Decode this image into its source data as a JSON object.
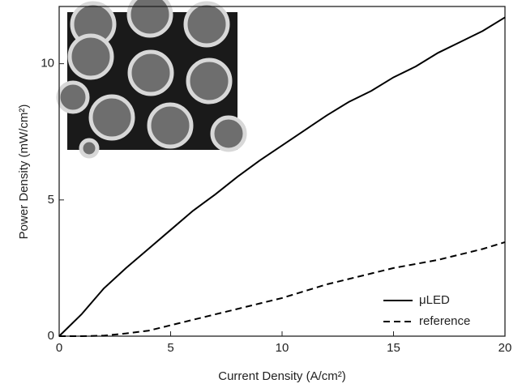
{
  "chart_data": {
    "type": "line",
    "x_label": "Current Density (A/cm²)",
    "y_label": "Power Density (mW/cm²)",
    "x": [
      0,
      1,
      2,
      3,
      4,
      5,
      6,
      7,
      8,
      9,
      10,
      11,
      12,
      13,
      14,
      15,
      16,
      17,
      18,
      19,
      20
    ],
    "series": [
      {
        "name": "μLED",
        "color": "#000000",
        "linestyle": "solid",
        "values": [
          0,
          0.8,
          1.75,
          2.5,
          3.2,
          3.9,
          4.6,
          5.2,
          5.85,
          6.45,
          7.0,
          7.55,
          8.1,
          8.6,
          9.0,
          9.5,
          9.9,
          10.4,
          10.8,
          11.2,
          11.7
        ]
      },
      {
        "name": "reference",
        "color": "#000000",
        "linestyle": "dashed",
        "values": [
          0,
          0,
          0.02,
          0.1,
          0.2,
          0.4,
          0.6,
          0.8,
          1.0,
          1.2,
          1.4,
          1.65,
          1.9,
          2.1,
          2.3,
          2.5,
          2.65,
          2.8,
          3.0,
          3.2,
          3.45
        ]
      }
    ],
    "xlim": [
      0,
      20
    ],
    "ylim": [
      0,
      12.1
    ],
    "xticks": [
      0,
      5,
      10,
      15,
      20
    ],
    "yticks": [
      0,
      5,
      10
    ],
    "legend": "lower right"
  }
}
